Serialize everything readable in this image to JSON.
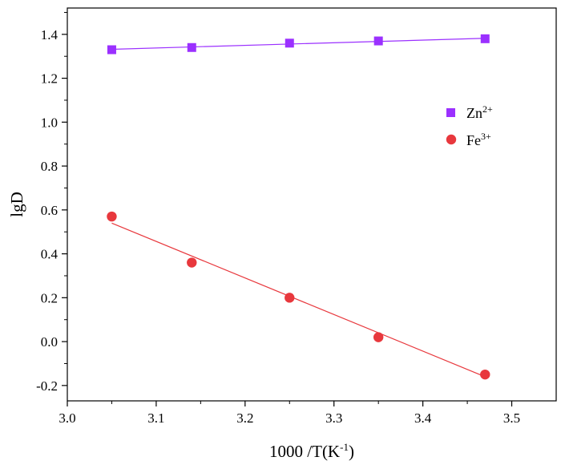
{
  "chart_data": {
    "type": "scatter",
    "xlabel": "1000 /T(K",
    "xlabel_sup": "-1",
    "xlabel_end": ")",
    "ylabel": "lgD",
    "xlim": [
      3.0,
      3.55
    ],
    "ylim": [
      -0.27,
      1.52
    ],
    "x_ticks": [
      "3.0",
      "3.1",
      "3.2",
      "3.3",
      "3.4",
      "3.5"
    ],
    "y_ticks": [
      "-0.2",
      "0.0",
      "0.2",
      "0.4",
      "0.6",
      "0.8",
      "1.0",
      "1.2",
      "1.4"
    ],
    "legend_position": "right",
    "grid": false,
    "series": [
      {
        "name": "Zn",
        "name_sup": "2+",
        "marker": "square",
        "color": "#9B30FF",
        "x": [
          3.05,
          3.14,
          3.25,
          3.35,
          3.47
        ],
        "y": [
          1.33,
          1.34,
          1.36,
          1.37,
          1.38
        ],
        "fit": {
          "x": [
            3.05,
            3.47
          ],
          "y": [
            1.332,
            1.382
          ]
        }
      },
      {
        "name": "Fe",
        "name_sup": "3+",
        "marker": "circle",
        "color": "#E8383D",
        "x": [
          3.05,
          3.14,
          3.25,
          3.35,
          3.47
        ],
        "y": [
          0.57,
          0.36,
          0.2,
          0.02,
          -0.15
        ],
        "fit": {
          "x": [
            3.05,
            3.47
          ],
          "y": [
            0.54,
            -0.16
          ]
        }
      }
    ]
  }
}
